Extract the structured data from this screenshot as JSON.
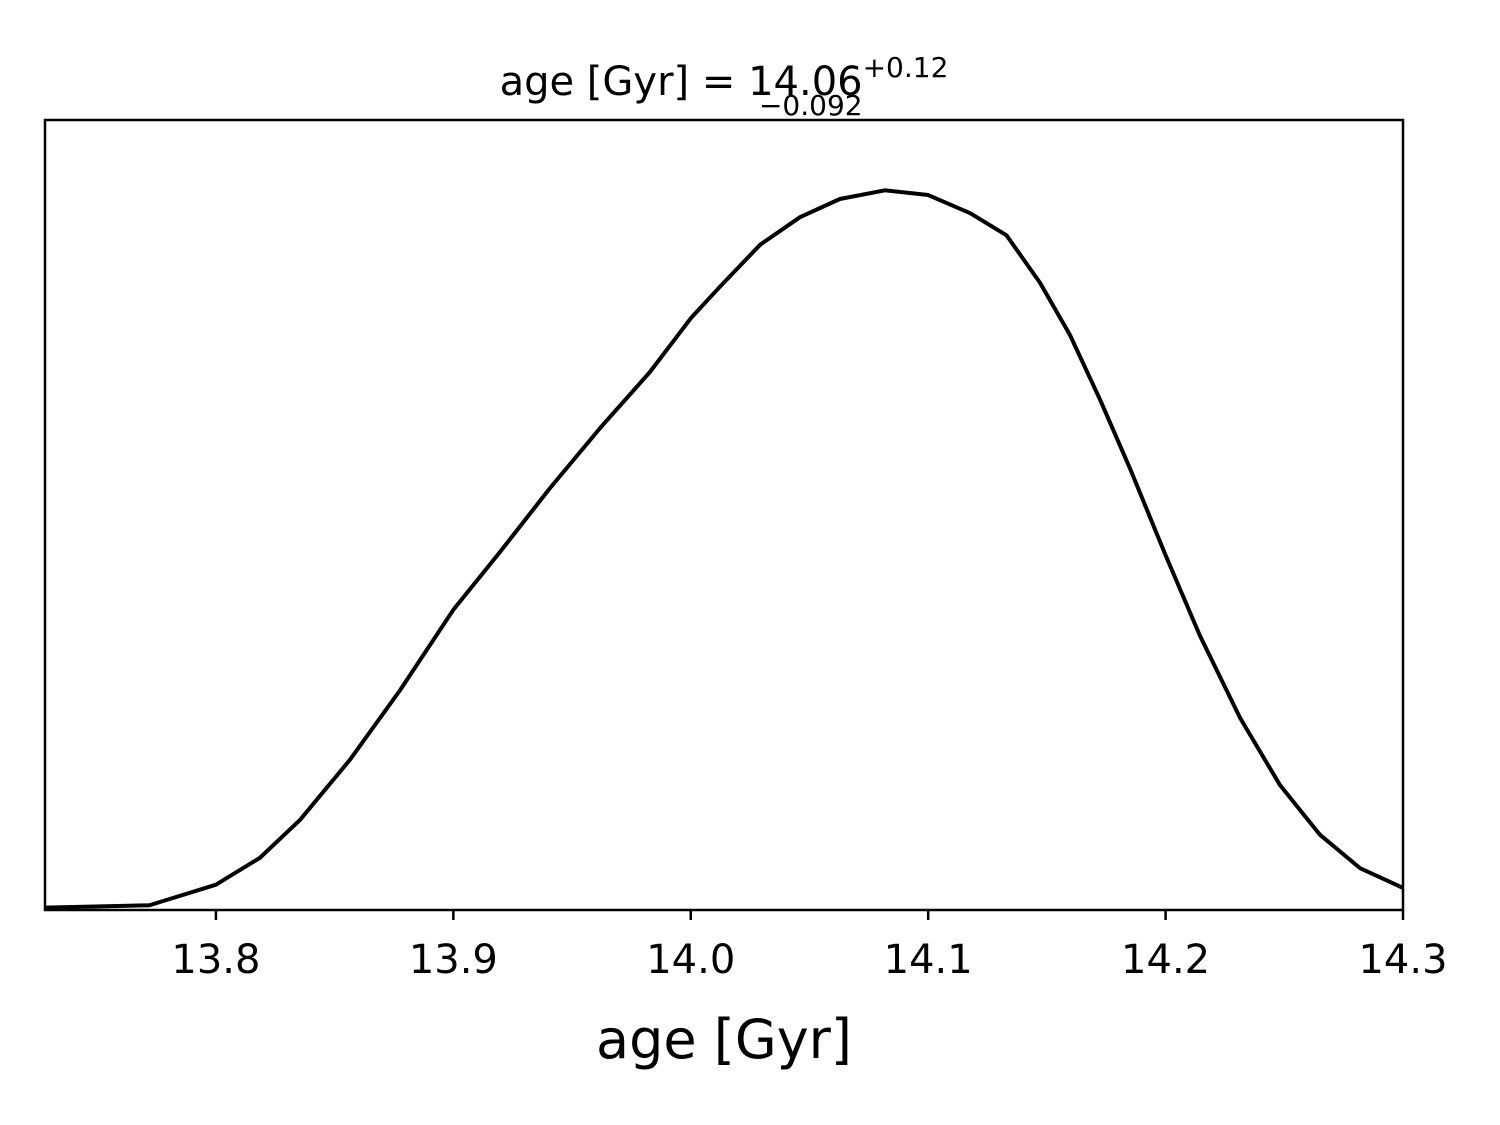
{
  "chart_data": {
    "type": "line",
    "title": {
      "text": "age [Gyr] = 14.06",
      "sup": "+0.12",
      "sub": "−0.092"
    },
    "x_label": "age [Gyr]",
    "x": [
      13.728,
      13.772,
      13.8,
      13.8185,
      13.8354,
      13.8564,
      13.8775,
      13.9,
      13.9196,
      13.9407,
      13.9618,
      13.9828,
      14.0,
      14.0123,
      14.0292,
      14.046,
      14.0628,
      14.0818,
      14.1,
      14.1177,
      14.133,
      14.1471,
      14.1597,
      14.1724,
      14.185,
      14.2,
      14.2145,
      14.2314,
      14.2482,
      14.2651,
      14.2819,
      14.3
    ],
    "values": [
      0.003,
      0.006,
      0.032,
      0.066,
      0.114,
      0.19,
      0.278,
      0.38,
      0.453,
      0.534,
      0.61,
      0.681,
      0.749,
      0.789,
      0.842,
      0.877,
      0.9,
      0.911,
      0.905,
      0.882,
      0.854,
      0.794,
      0.728,
      0.646,
      0.559,
      0.449,
      0.347,
      0.243,
      0.158,
      0.095,
      0.053,
      0.028
    ],
    "color": "#000000",
    "xlim": [
      13.728,
      14.3
    ],
    "xticks": [
      13.8,
      13.9,
      {
        "value": 14,
        "label": "14.0"
      },
      14.1,
      14.2,
      14.3
    ],
    "ylim": [
      0,
      1
    ],
    "grid": false
  }
}
